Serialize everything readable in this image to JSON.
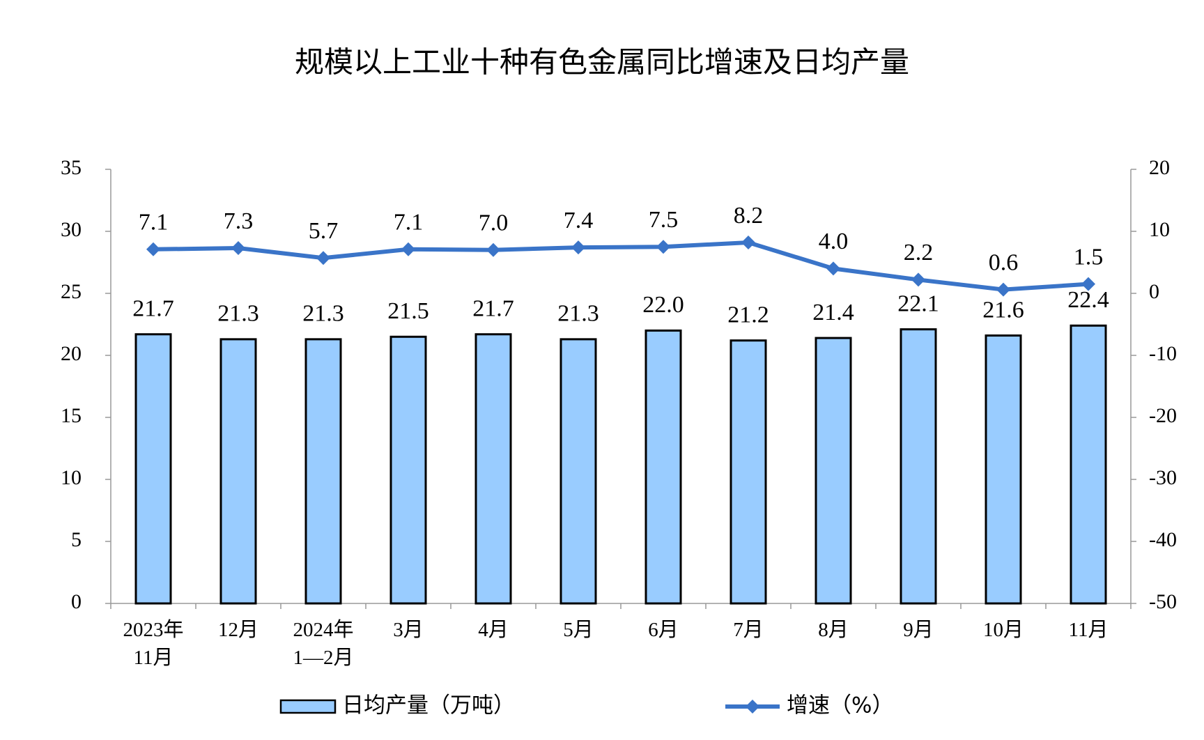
{
  "chart_data": {
    "type": "bar-line",
    "title": "规模以上工业十种有色金属同比增速及日均产量",
    "categories": [
      "2023年\n11月",
      "12月",
      "2024年\n1—2月",
      "3月",
      "4月",
      "5月",
      "6月",
      "7月",
      "8月",
      "9月",
      "10月",
      "11月"
    ],
    "series": [
      {
        "name": "日均产量（万吨）",
        "type": "bar",
        "color": "#99ccff",
        "values": [
          21.7,
          21.3,
          21.3,
          21.5,
          21.7,
          21.3,
          22.0,
          21.2,
          21.4,
          22.1,
          21.6,
          22.4
        ],
        "value_labels": [
          "21.7",
          "21.3",
          "21.3",
          "21.5",
          "21.7",
          "21.3",
          "22.0",
          "21.2",
          "21.4",
          "22.1",
          "21.6",
          "22.4"
        ]
      },
      {
        "name": "增速（%）",
        "type": "line",
        "axis": "y2",
        "color": "#3a74c8",
        "values": [
          7.1,
          7.3,
          5.7,
          7.1,
          7.0,
          7.4,
          7.5,
          8.2,
          4.0,
          2.2,
          0.6,
          1.5
        ],
        "value_labels": [
          "7.1",
          "7.3",
          "5.7",
          "7.1",
          "7.0",
          "7.4",
          "7.5",
          "8.2",
          "4.0",
          "2.2",
          "0.6",
          "1.5"
        ]
      }
    ],
    "ylim": [
      0,
      35
    ],
    "yticks": [
      0,
      5,
      10,
      15,
      20,
      25,
      30,
      35
    ],
    "y2lim": [
      -50,
      20
    ],
    "y2ticks": [
      -50,
      -40,
      -30,
      -20,
      -10,
      0,
      10,
      20
    ],
    "grid": false,
    "legend": "bottom"
  }
}
